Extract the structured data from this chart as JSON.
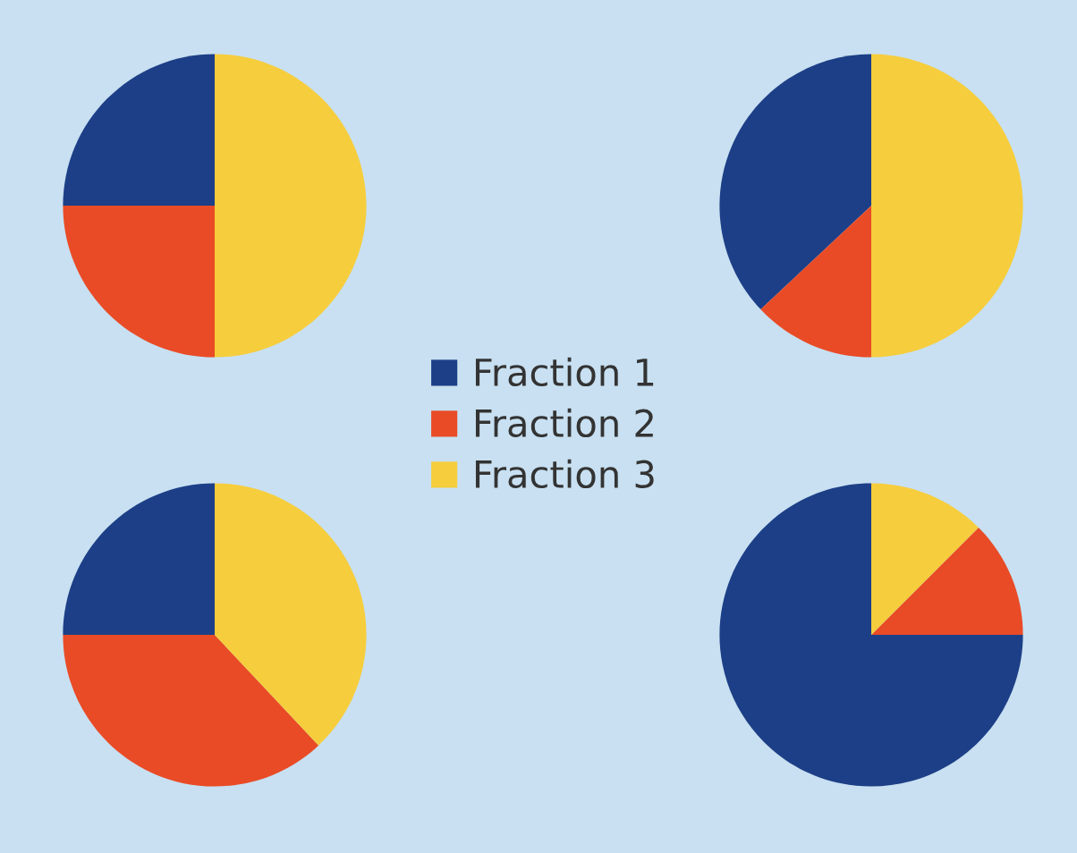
{
  "chart_data": [
    {
      "type": "pie",
      "categories": [
        "Fraction 1",
        "Fraction 2",
        "Fraction 3"
      ],
      "values": [
        25,
        25,
        50
      ],
      "colors": [
        "#1d3f87",
        "#e94b26",
        "#f6cd3c"
      ],
      "legend": "right"
    },
    {
      "type": "pie",
      "categories": [
        null,
        null,
        null
      ],
      "values": [
        37,
        13,
        50
      ],
      "colors": [
        "#1d3f87",
        "#e94b26",
        "#f6cd3c"
      ]
    },
    {
      "type": "pie",
      "categories": [
        null,
        null,
        null
      ],
      "values": [
        25,
        37,
        38
      ],
      "colors": [
        "#1d3f87",
        "#e94b26",
        "#f6cd3c"
      ]
    },
    {
      "type": "pie",
      "categories": [
        null,
        null,
        null
      ],
      "values": [
        75,
        12.5,
        12.5
      ],
      "colors": [
        "#1d3f87",
        "#e94b26",
        "#f6cd3c"
      ]
    }
  ]
}
